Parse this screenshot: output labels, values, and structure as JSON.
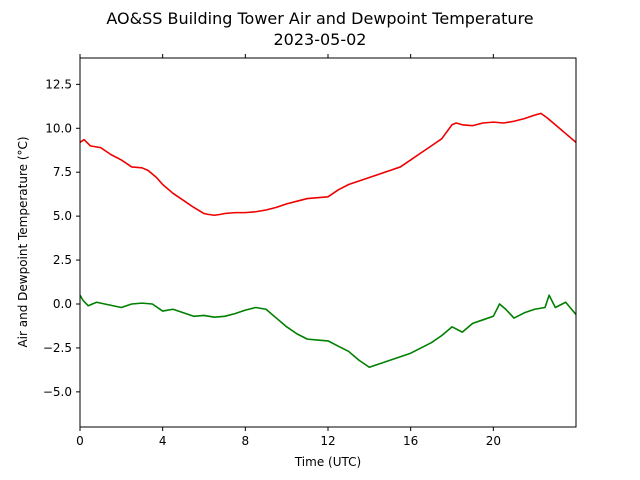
{
  "chart_data": {
    "type": "line",
    "title": "AO&SS Building Tower Air and Dewpoint Temperature",
    "subtitle": "2023-05-02",
    "xlabel": "Time (UTC)",
    "ylabel": "Air and Dewpoint Temperature (°C)",
    "xlim": [
      0,
      24
    ],
    "ylim": [
      -7,
      14
    ],
    "xticks": [
      0,
      4,
      8,
      12,
      16,
      20
    ],
    "yticks": [
      -5.0,
      -2.5,
      0.0,
      2.5,
      5.0,
      7.5,
      10.0,
      12.5
    ],
    "ytick_labels": [
      "−5.0",
      "−2.5",
      "0.0",
      "2.5",
      "5.0",
      "7.5",
      "10.0",
      "12.5"
    ],
    "grid": false,
    "legend": "none",
    "colors": {
      "air": "#ee0000",
      "dewpoint": "#008000"
    },
    "series": [
      {
        "key": "air",
        "x": [
          0,
          0.2,
          0.5,
          1.0,
          1.5,
          2.0,
          2.5,
          3.0,
          3.3,
          3.7,
          4.0,
          4.5,
          5.0,
          5.5,
          6.0,
          6.2,
          6.5,
          6.8,
          7.0,
          7.5,
          8.0,
          8.5,
          9.0,
          9.5,
          10.0,
          10.5,
          11.0,
          11.5,
          12.0,
          12.5,
          13.0,
          13.5,
          14.0,
          14.5,
          15.0,
          15.5,
          16.0,
          16.5,
          17.0,
          17.5,
          18.0,
          18.2,
          18.5,
          19.0,
          19.5,
          20.0,
          20.5,
          21.0,
          21.5,
          22.0,
          22.3,
          22.6,
          23.0,
          23.5,
          24.0
        ],
        "y": [
          9.2,
          9.35,
          9.0,
          8.9,
          8.5,
          8.2,
          7.8,
          7.75,
          7.6,
          7.2,
          6.8,
          6.3,
          5.9,
          5.5,
          5.15,
          5.1,
          5.05,
          5.1,
          5.15,
          5.2,
          5.2,
          5.25,
          5.35,
          5.5,
          5.7,
          5.85,
          6.0,
          6.05,
          6.1,
          6.5,
          6.8,
          7.0,
          7.2,
          7.4,
          7.6,
          7.8,
          8.2,
          8.6,
          9.0,
          9.4,
          10.2,
          10.3,
          10.2,
          10.15,
          10.3,
          10.35,
          10.3,
          10.4,
          10.55,
          10.75,
          10.85,
          10.6,
          10.2,
          9.7,
          9.2
        ]
      },
      {
        "key": "dewpoint",
        "x": [
          0,
          0.15,
          0.4,
          0.8,
          1.2,
          1.6,
          2.0,
          2.5,
          3.0,
          3.5,
          4.0,
          4.5,
          5.0,
          5.5,
          6.0,
          6.5,
          7.0,
          7.5,
          8.0,
          8.5,
          9.0,
          9.5,
          10.0,
          10.5,
          11.0,
          11.5,
          12.0,
          12.5,
          13.0,
          13.5,
          14.0,
          14.5,
          15.0,
          15.5,
          16.0,
          16.5,
          17.0,
          17.5,
          18.0,
          18.5,
          19.0,
          19.5,
          20.0,
          20.3,
          20.6,
          21.0,
          21.5,
          22.0,
          22.5,
          22.7,
          23.0,
          23.5,
          24.0
        ],
        "y": [
          0.5,
          0.2,
          -0.1,
          0.1,
          0.0,
          -0.1,
          -0.2,
          0.0,
          0.05,
          0.0,
          -0.4,
          -0.3,
          -0.5,
          -0.7,
          -0.65,
          -0.75,
          -0.7,
          -0.55,
          -0.35,
          -0.2,
          -0.3,
          -0.8,
          -1.3,
          -1.7,
          -2.0,
          -2.05,
          -2.1,
          -2.4,
          -2.7,
          -3.2,
          -3.6,
          -3.4,
          -3.2,
          -3.0,
          -2.8,
          -2.5,
          -2.2,
          -1.8,
          -1.3,
          -1.6,
          -1.1,
          -0.9,
          -0.7,
          0.0,
          -0.3,
          -0.8,
          -0.5,
          -0.3,
          -0.2,
          0.5,
          -0.2,
          0.1,
          -0.6
        ]
      }
    ]
  }
}
